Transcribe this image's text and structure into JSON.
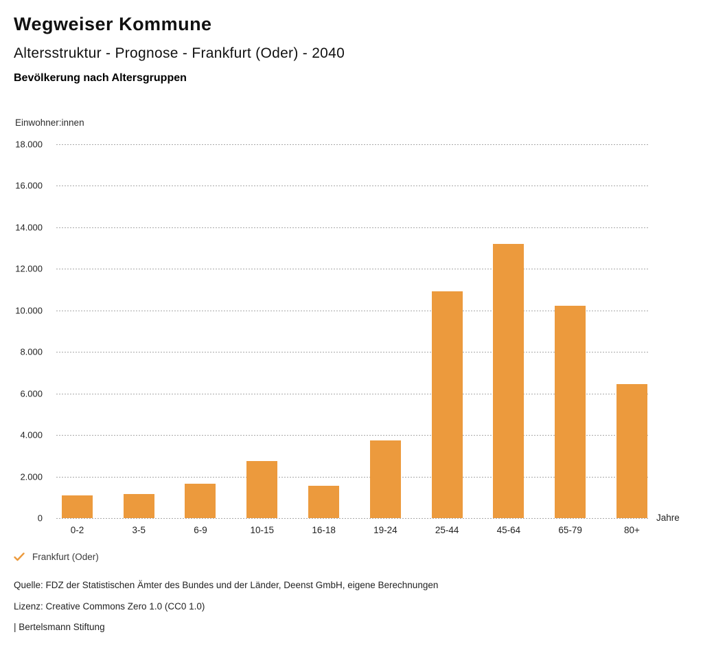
{
  "header": {
    "title": "Wegweiser Kommune",
    "subtitle": "Altersstruktur - Prognose - Frankfurt (Oder) - 2040",
    "chart_heading": "Bevölkerung nach Altersgruppen"
  },
  "chart_data": {
    "type": "bar",
    "title": "Bevölkerung nach Altersgruppen",
    "ylabel": "Einwohner:innen",
    "xlabel": "Jahre",
    "categories": [
      "0-2",
      "3-5",
      "6-9",
      "10-15",
      "16-18",
      "19-24",
      "25-44",
      "45-64",
      "65-79",
      "80+"
    ],
    "values": [
      1080,
      1160,
      1650,
      2760,
      1540,
      3750,
      10910,
      13190,
      10210,
      6450
    ],
    "series_name": "Frankfurt (Oder)",
    "ylim": [
      0,
      18000
    ],
    "ytick_step": 2000,
    "ytick_labels": [
      "0",
      "2.000",
      "4.000",
      "6.000",
      "8.000",
      "10.000",
      "12.000",
      "14.000",
      "16.000",
      "18.000"
    ],
    "grid": "horizontal-dashed",
    "legend_position": "bottom-left",
    "bar_color": "#EC9A3D"
  },
  "legend": {
    "check_icon": "check-icon",
    "label": "Frankfurt (Oder)",
    "color": "#EC9A3D"
  },
  "footer": {
    "source": "Quelle: FDZ der Statistischen Ämter des Bundes und der Länder, Deenst GmbH, eigene Berechnungen",
    "license": "Lizenz: Creative Commons Zero 1.0 (CC0 1.0)",
    "attribution": "| Bertelsmann Stiftung"
  }
}
